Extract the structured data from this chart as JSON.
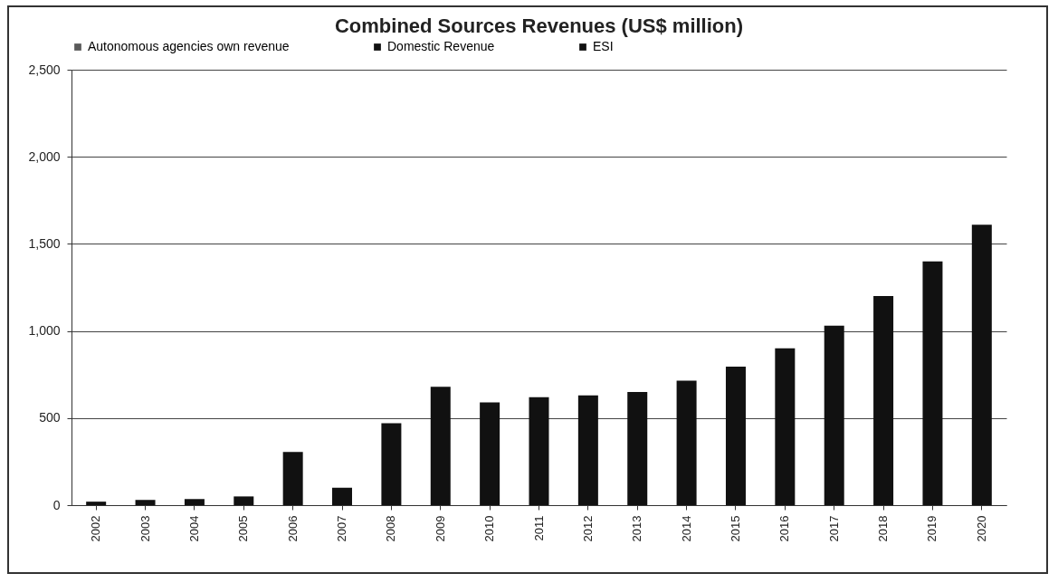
{
  "chart_data": {
    "type": "bar",
    "title": "Combined Sources Revenues (US$ million)",
    "categories": [
      "2002",
      "2003",
      "2004",
      "2005",
      "2006",
      "2007",
      "2008",
      "2009",
      "2010",
      "2011",
      "2012",
      "2013",
      "2014",
      "2015",
      "2016",
      "2017",
      "2018",
      "2019",
      "2020"
    ],
    "series": [
      {
        "name": "Autonomous agencies own revenue",
        "color": "#5a5a5a",
        "values": [
          null,
          null,
          null,
          null,
          null,
          null,
          null,
          null,
          null,
          null,
          null,
          null,
          null,
          null,
          null,
          null,
          null,
          null,
          null
        ]
      },
      {
        "name": "Domestic Revenue",
        "color": "#111111",
        "values": [
          null,
          null,
          null,
          null,
          null,
          null,
          null,
          null,
          null,
          null,
          null,
          null,
          null,
          null,
          null,
          null,
          null,
          null,
          null
        ]
      },
      {
        "name": "ESI",
        "color": "#111111",
        "values": [
          20,
          30,
          35,
          50,
          305,
          100,
          470,
          680,
          590,
          620,
          630,
          650,
          715,
          795,
          900,
          1030,
          1200,
          1400,
          1610
        ]
      }
    ],
    "ylim": [
      0,
      2500
    ],
    "yticks": [
      {
        "value": 0,
        "label": "0"
      },
      {
        "value": 500,
        "label": "500"
      },
      {
        "value": 1000,
        "label": "1,000"
      },
      {
        "value": 1500,
        "label": "1,500"
      },
      {
        "value": 2000,
        "label": "2,000"
      },
      {
        "value": 2500,
        "label": "2,500"
      }
    ],
    "grid": "y",
    "legend": "top"
  }
}
